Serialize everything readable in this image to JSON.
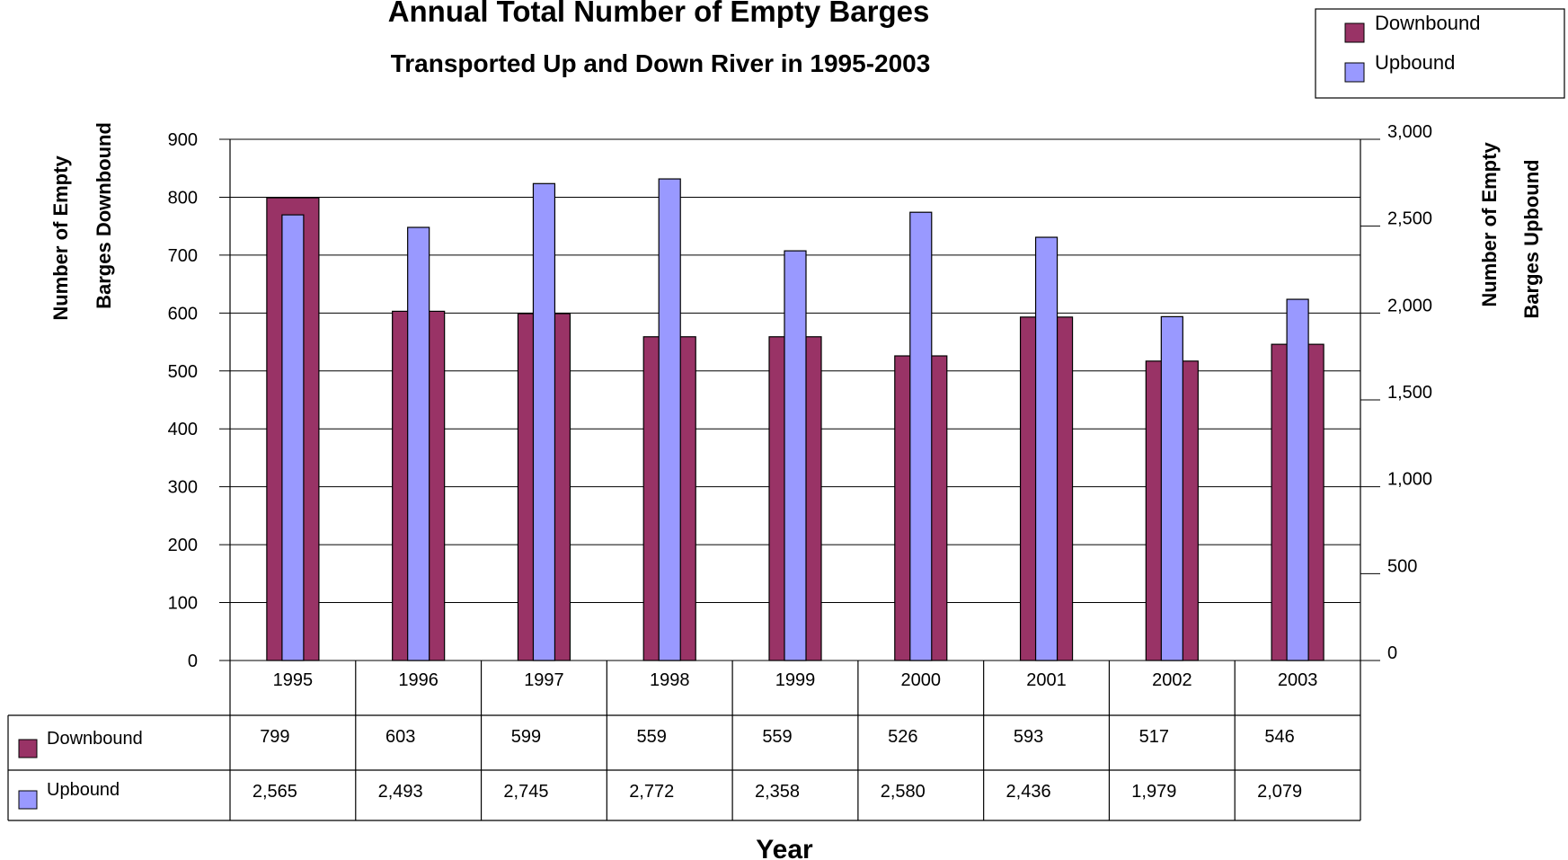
{
  "chart_data": {
    "type": "bar",
    "title": "Annual Total Number of Empty Barges",
    "subtitle": "Transported Up and Down River in 1995-2003",
    "xlabel": "Year",
    "ylabel_left_line1": "Number of Empty",
    "ylabel_left_line2": "Barges Downbound",
    "ylabel_right_line1": "Number of Empty",
    "ylabel_right_line2": "Barges Upbound",
    "categories": [
      "1995",
      "1996",
      "1997",
      "1998",
      "1999",
      "2000",
      "2001",
      "2002",
      "2003"
    ],
    "series": [
      {
        "name": "Downbound",
        "axis": "left",
        "color": "#993366",
        "values": [
          799,
          603,
          599,
          559,
          559,
          526,
          593,
          517,
          546
        ],
        "labels": [
          "799",
          "603",
          "599",
          "559",
          "559",
          "526",
          "593",
          "517",
          "546"
        ]
      },
      {
        "name": "Upbound",
        "axis": "right",
        "color": "#9999ff",
        "values": [
          2565,
          2493,
          2745,
          2772,
          2358,
          2580,
          2436,
          1979,
          2079
        ],
        "labels": [
          "2,565",
          "2,493",
          "2,745",
          "2,772",
          "2,358",
          "2,580",
          "2,436",
          "1,979",
          "2,079"
        ]
      }
    ],
    "ylim_left": [
      0,
      900
    ],
    "ylim_right": [
      0,
      3000
    ],
    "yticks_left": [
      "0",
      "100",
      "200",
      "300",
      "400",
      "500",
      "600",
      "700",
      "800",
      "900"
    ],
    "yticks_right": [
      "0",
      "500",
      "1,000",
      "1,500",
      "2,000",
      "2,500",
      "3,000"
    ],
    "grid": true,
    "legend_position": "top-right",
    "data_table": true
  }
}
